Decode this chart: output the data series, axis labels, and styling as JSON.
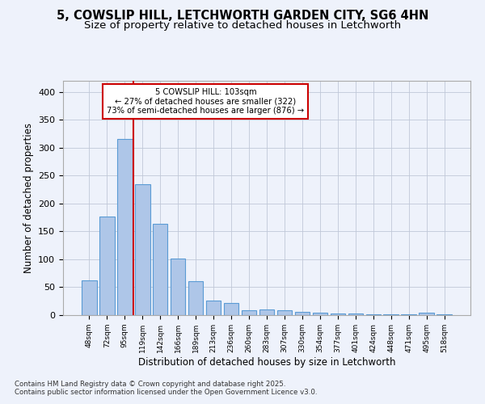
{
  "title1": "5, COWSLIP HILL, LETCHWORTH GARDEN CITY, SG6 4HN",
  "title2": "Size of property relative to detached houses in Letchworth",
  "xlabel": "Distribution of detached houses by size in Letchworth",
  "ylabel": "Number of detached properties",
  "categories": [
    "48sqm",
    "72sqm",
    "95sqm",
    "119sqm",
    "142sqm",
    "166sqm",
    "189sqm",
    "213sqm",
    "236sqm",
    "260sqm",
    "283sqm",
    "307sqm",
    "330sqm",
    "354sqm",
    "377sqm",
    "401sqm",
    "424sqm",
    "448sqm",
    "471sqm",
    "495sqm",
    "518sqm"
  ],
  "values": [
    63,
    176,
    316,
    234,
    164,
    102,
    61,
    26,
    22,
    9,
    10,
    8,
    6,
    5,
    3,
    3,
    2,
    1,
    1,
    4,
    2
  ],
  "bar_color": "#aec6e8",
  "bar_edge_color": "#5b9bd5",
  "vline_x": 2.5,
  "vline_color": "#cc0000",
  "annotation_line1": "5 COWSLIP HILL: 103sqm",
  "annotation_line2": "← 27% of detached houses are smaller (322)",
  "annotation_line3": "73% of semi-detached houses are larger (876) →",
  "annotation_box_color": "#ffffff",
  "annotation_box_edge": "#cc0000",
  "footer1": "Contains HM Land Registry data © Crown copyright and database right 2025.",
  "footer2": "Contains public sector information licensed under the Open Government Licence v3.0.",
  "bg_color": "#eef2fb",
  "ylim": [
    0,
    420
  ],
  "yticks": [
    0,
    50,
    100,
    150,
    200,
    250,
    300,
    350,
    400
  ],
  "grid_color": "#c0c8d8",
  "title1_fontsize": 10.5,
  "title2_fontsize": 9.5
}
